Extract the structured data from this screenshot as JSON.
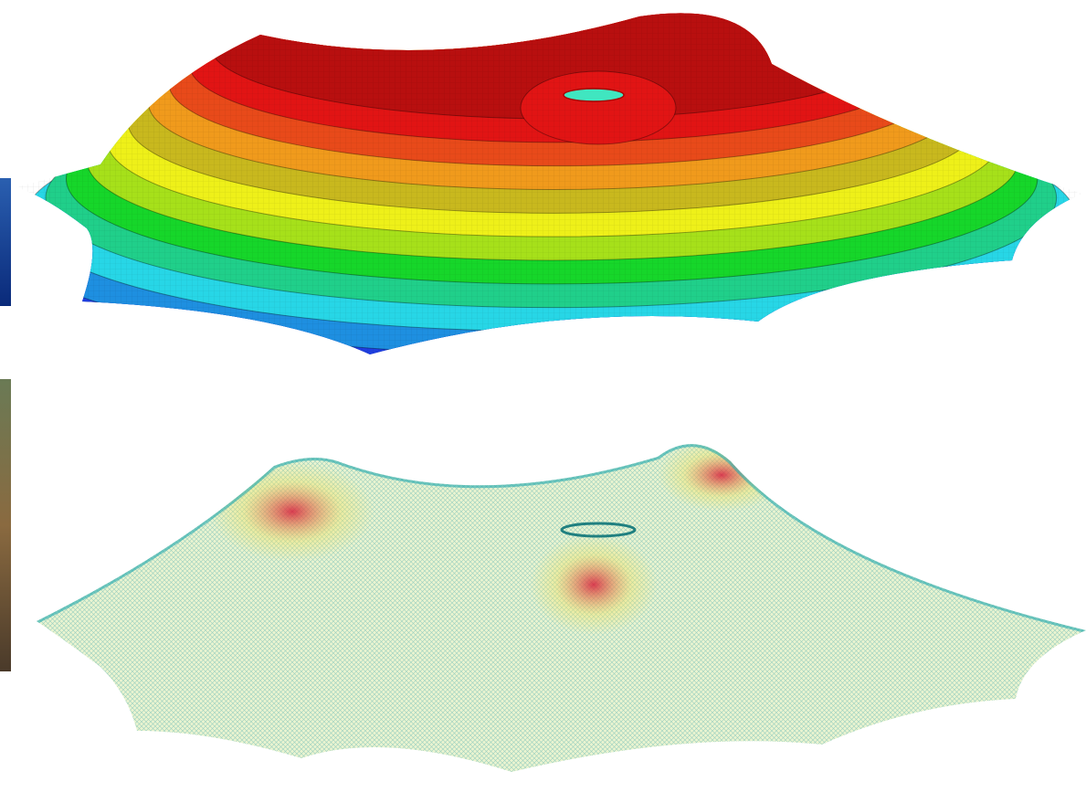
{
  "figure": {
    "panels": [
      {
        "id": "contour-plot",
        "bands": [
          {
            "color": "#0b1f9e"
          },
          {
            "color": "#1f3fe0"
          },
          {
            "color": "#1e8fe0"
          },
          {
            "color": "#27d6e6"
          },
          {
            "color": "#20cf8a"
          },
          {
            "color": "#16d62a"
          },
          {
            "color": "#a6e01a"
          },
          {
            "color": "#eef019"
          },
          {
            "color": "#c8b81e"
          },
          {
            "color": "#f09a1c"
          },
          {
            "color": "#e84a1a"
          },
          {
            "color": "#e11414"
          },
          {
            "color": "#b80f0f"
          }
        ]
      },
      {
        "id": "vector-plot",
        "colors": {
          "base": "#e6f2cc",
          "mesh": "#58c6c0",
          "peak": "#d81e3a",
          "mid": "#f0e060"
        }
      }
    ]
  }
}
